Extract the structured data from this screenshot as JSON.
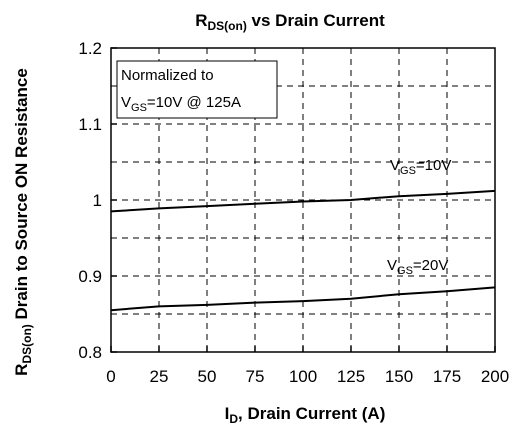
{
  "chart_data": {
    "type": "line",
    "title": {
      "main": "R",
      "sub": "DS(on)",
      "rest": " vs Drain Current"
    },
    "xlabel": {
      "main": "I",
      "sub": "D",
      "rest": ", Drain Current (A)"
    },
    "ylabel": {
      "main": "R",
      "sub": "DS(on)",
      "rest": " Drain to Source ON Resistance"
    },
    "xlim": [
      0,
      200
    ],
    "ylim": [
      0.8,
      1.2
    ],
    "xticks": [
      0,
      25,
      50,
      75,
      100,
      125,
      150,
      175,
      200
    ],
    "yticks": [
      0.8,
      0.9,
      1.0,
      1.1,
      1.2
    ],
    "xtick_labels": [
      "0",
      "25",
      "50",
      "75",
      "100",
      "125",
      "150",
      "175",
      "200"
    ],
    "ytick_labels": [
      "0.8",
      "0.9",
      "1",
      "1.1",
      "1.2"
    ],
    "grid": true,
    "annotation": {
      "line1": "Normalized to",
      "line2_main": "V",
      "line2_sub": "GS",
      "line2_rest": "=10V @ 125A"
    },
    "series": [
      {
        "label_main": "V",
        "label_sub": "GS",
        "label_rest": "=10V",
        "x": [
          0,
          25,
          50,
          75,
          100,
          125,
          150,
          175,
          200
        ],
        "y": [
          0.985,
          0.989,
          0.992,
          0.995,
          0.998,
          1.0,
          1.005,
          1.008,
          1.012
        ]
      },
      {
        "label_main": "V",
        "label_sub": "GS",
        "label_rest": "=20V",
        "x": [
          0,
          25,
          50,
          75,
          100,
          125,
          150,
          175,
          200
        ],
        "y": [
          0.855,
          0.86,
          0.862,
          0.865,
          0.867,
          0.87,
          0.876,
          0.88,
          0.885
        ]
      }
    ]
  }
}
